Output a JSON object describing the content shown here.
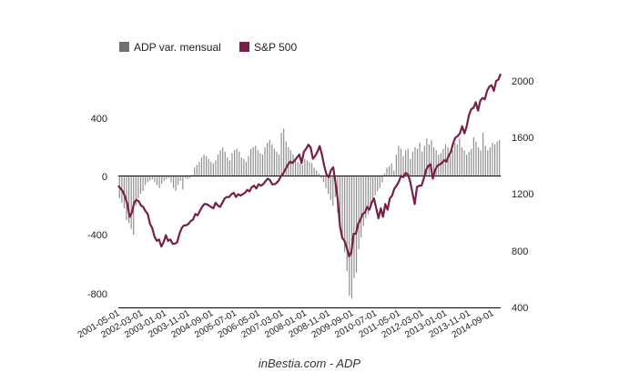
{
  "chart_data": {
    "type": "bar+line",
    "caption": "inBestia.com - ADP",
    "colors": {
      "bars": "#8c8c8c",
      "legend_bars": "#707070",
      "line": "#7a1d48",
      "axis": "#000000"
    },
    "legend": [
      {
        "label": "ADP var. mensual",
        "kind": "bar"
      },
      {
        "label": "S&P 500",
        "kind": "line"
      }
    ],
    "left_axis": {
      "ticks": [
        "400",
        "0",
        "-400",
        "-800"
      ],
      "tick_values": [
        400,
        0,
        -400,
        -800
      ],
      "range": [
        -900,
        700
      ]
    },
    "right_axis": {
      "ticks": [
        "2000",
        "1600",
        "1200",
        "800",
        "400"
      ],
      "tick_values": [
        2000,
        1600,
        1200,
        800,
        400
      ],
      "range": [
        400,
        2100
      ]
    },
    "x_ticks": [
      "2001-05-01",
      "2002-03-01",
      "2003-01-01",
      "2003-11-01",
      "2004-09-01",
      "2005-07-01",
      "2006-05-01",
      "2007-03-01",
      "2008-01-01",
      "2008-11-01",
      "2009-09-01",
      "2010-07-01",
      "2011-05-01",
      "2012-03-01",
      "2013-01-01",
      "2013-11-01",
      "2014-09-01"
    ],
    "x_start": "2001-05",
    "adp_monthly_change": [
      -150,
      -180,
      -220,
      -300,
      -320,
      -360,
      -400,
      -200,
      -150,
      -120,
      -100,
      -60,
      -40,
      -30,
      -20,
      -40,
      -60,
      -80,
      -50,
      -30,
      -20,
      -10,
      -40,
      -80,
      -100,
      -60,
      -30,
      -90,
      -10,
      -20,
      -10,
      10,
      60,
      80,
      100,
      130,
      150,
      140,
      120,
      100,
      90,
      110,
      150,
      180,
      200,
      170,
      130,
      110,
      160,
      180,
      190,
      170,
      130,
      120,
      100,
      140,
      190,
      200,
      210,
      180,
      160,
      150,
      200,
      230,
      250,
      220,
      190,
      170,
      150,
      300,
      330,
      240,
      200,
      180,
      150,
      120,
      100,
      90,
      80,
      120,
      110,
      100,
      90,
      60,
      40,
      20,
      -10,
      -40,
      -80,
      -120,
      -160,
      -200,
      -140,
      -250,
      -320,
      -420,
      -520,
      -650,
      -820,
      -840,
      -700,
      -660,
      -500,
      -420,
      -340,
      -290,
      -260,
      -200,
      -160,
      -130,
      -100,
      -80,
      -40,
      20,
      60,
      70,
      90,
      40,
      150,
      210,
      190,
      140,
      180,
      190,
      120,
      170,
      200,
      190,
      230,
      170,
      210,
      260,
      220,
      250,
      200,
      180,
      150,
      160,
      190,
      220,
      200,
      140,
      180,
      230,
      220,
      260,
      200,
      180,
      150,
      170,
      190,
      270,
      240,
      200,
      180,
      300,
      210,
      180,
      200,
      230,
      220,
      240,
      250
    ],
    "sp500_monthly": [
      1260,
      1240,
      1220,
      1180,
      1130,
      1040,
      1070,
      1140,
      1160,
      1150,
      1120,
      1110,
      1080,
      1060,
      990,
      960,
      900,
      870,
      880,
      830,
      860,
      910,
      870,
      880,
      850,
      850,
      860,
      920,
      960,
      980,
      980,
      990,
      1010,
      1020,
      1060,
      1050,
      1080,
      1110,
      1130,
      1130,
      1120,
      1110,
      1100,
      1140,
      1120,
      1110,
      1140,
      1170,
      1180,
      1180,
      1200,
      1210,
      1180,
      1200,
      1190,
      1200,
      1210,
      1230,
      1220,
      1250,
      1260,
      1240,
      1270,
      1260,
      1270,
      1290,
      1310,
      1300,
      1270,
      1270,
      1280,
      1300,
      1330,
      1350,
      1380,
      1410,
      1430,
      1420,
      1440,
      1460,
      1480,
      1420,
      1500,
      1520,
      1550,
      1530,
      1450,
      1470,
      1500,
      1540,
      1480,
      1400,
      1340,
      1320,
      1370,
      1390,
      1280,
      1160,
      970,
      890,
      870,
      820,
      760,
      790,
      920,
      920,
      990,
      1020,
      1060,
      1070,
      1110,
      1090,
      1140,
      1170,
      1100,
      1030,
      1100,
      1040,
      1130,
      1090,
      1170,
      1190,
      1240,
      1260,
      1290,
      1330,
      1320,
      1350,
      1340,
      1290,
      1210,
      1130,
      1250,
      1260,
      1260,
      1310,
      1370,
      1400,
      1410,
      1310,
      1370,
      1400,
      1410,
      1420,
      1440,
      1430,
      1470,
      1500,
      1560,
      1600,
      1610,
      1630,
      1680,
      1630,
      1680,
      1760,
      1800,
      1810,
      1850,
      1790,
      1860,
      1880,
      1870,
      1930,
      1960,
      1970,
      1930,
      2000,
      2010,
      2050
    ]
  }
}
